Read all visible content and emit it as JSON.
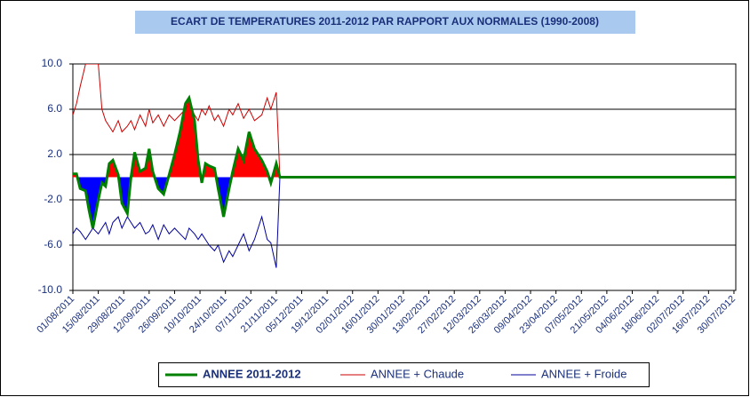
{
  "chart_data": {
    "type": "line",
    "title": "ECART DE TEMPERATURES 2011-2012 PAR RAPPORT AUX  NORMALES (1990-2008)",
    "x": [
      "01/08/2011",
      "03/08/2011",
      "05/08/2011",
      "08/08/2011",
      "10/08/2011",
      "12/08/2011",
      "15/08/2011",
      "17/08/2011",
      "19/08/2011",
      "21/08/2011",
      "23/08/2011",
      "26/08/2011",
      "28/08/2011",
      "31/08/2011",
      "02/09/2011",
      "04/09/2011",
      "07/09/2011",
      "10/09/2011",
      "12/09/2011",
      "14/09/2011",
      "17/09/2011",
      "20/09/2011",
      "23/09/2011",
      "26/09/2011",
      "29/09/2011",
      "02/10/2011",
      "04/10/2011",
      "07/10/2011",
      "09/10/2011",
      "11/10/2011",
      "13/10/2011",
      "15/10/2011",
      "18/10/2011",
      "20/10/2011",
      "23/10/2011",
      "26/10/2011",
      "28/10/2011",
      "31/10/2011",
      "03/11/2011",
      "06/11/2011",
      "09/11/2011",
      "13/11/2011",
      "16/11/2011",
      "18/11/2011",
      "21/11/2011",
      "23/11/2011",
      "31/07/2012"
    ],
    "series": [
      {
        "name": "ANNEE 2011-2012",
        "color": "#008000",
        "fill_above": "#ff0000",
        "fill_below": "#0000ff",
        "values": [
          0.3,
          0.3,
          -1,
          -1.2,
          -3,
          -4.5,
          -2,
          -0.5,
          -0.8,
          1.2,
          1.5,
          0.2,
          -2.3,
          -3.2,
          0,
          2.2,
          0.5,
          0.8,
          2.5,
          0.5,
          -1,
          -1.5,
          0.2,
          2,
          4,
          6.5,
          7,
          5,
          1.5,
          -0.5,
          1.2,
          1,
          0.8,
          -1,
          -3.5,
          -1,
          0.5,
          2.5,
          1.5,
          4,
          2.5,
          1.5,
          0.5,
          -0.5,
          1.2,
          0,
          0
        ]
      },
      {
        "name": "ANNEE  + Chaude",
        "color": "#cc0000",
        "values": [
          5.5,
          6.5,
          8,
          10,
          10,
          10,
          10,
          6,
          5,
          4.5,
          4,
          5,
          4,
          4.5,
          5,
          4.2,
          5.5,
          4.5,
          6,
          4.8,
          5.5,
          4.5,
          5.5,
          5,
          5.5,
          6,
          6.5,
          5.5,
          5,
          6,
          5.5,
          6.3,
          5,
          5.5,
          4.5,
          6,
          5.5,
          6.5,
          5.2,
          6,
          5,
          5.5,
          7,
          6,
          7.5,
          0,
          0
        ]
      },
      {
        "name": "ANNEE + Froide",
        "color": "#000099",
        "values": [
          -5,
          -4.5,
          -4.8,
          -5.5,
          -5,
          -4.5,
          -5,
          -4.5,
          -4,
          -5,
          -4,
          -3.5,
          -4.5,
          -3.5,
          -4,
          -4.5,
          -4,
          -5,
          -4.8,
          -4.2,
          -5.5,
          -4.2,
          -5,
          -4.5,
          -5,
          -5.5,
          -4.5,
          -5,
          -5.5,
          -5,
          -5.5,
          -6,
          -6.5,
          -6,
          -7.5,
          -6.5,
          -7,
          -6,
          -5,
          -6.5,
          -5.5,
          -3.5,
          -5.5,
          -5.8,
          -8,
          0,
          0
        ]
      }
    ],
    "xlim": [
      "01/08/2011",
      "31/07/2012"
    ],
    "xticks": [
      "01/08/2011",
      "15/08/2011",
      "29/08/2011",
      "12/09/2011",
      "26/09/2011",
      "10/10/2011",
      "24/10/2011",
      "07/11/2011",
      "21/11/2011",
      "05/12/2011",
      "19/12/2011",
      "02/01/2012",
      "16/01/2012",
      "30/01/2012",
      "13/02/2012",
      "27/02/2012",
      "12/03/2012",
      "26/03/2012",
      "09/04/2012",
      "23/04/2012",
      "07/05/2012",
      "21/05/2012",
      "04/06/2012",
      "18/06/2012",
      "02/07/2012",
      "16/07/2012",
      "30/07/2012"
    ],
    "ylim": [
      -10,
      10
    ],
    "yticks": [
      {
        "value": -10,
        "label": "-10.0"
      },
      {
        "value": -6,
        "label": "-6.0"
      },
      {
        "value": -2,
        "label": "-2.0"
      },
      {
        "value": 2,
        "label": "2.0"
      },
      {
        "value": 6,
        "label": "6.0"
      },
      {
        "value": 10,
        "label": "10.0"
      }
    ],
    "grid": true,
    "legend": "bottom"
  }
}
